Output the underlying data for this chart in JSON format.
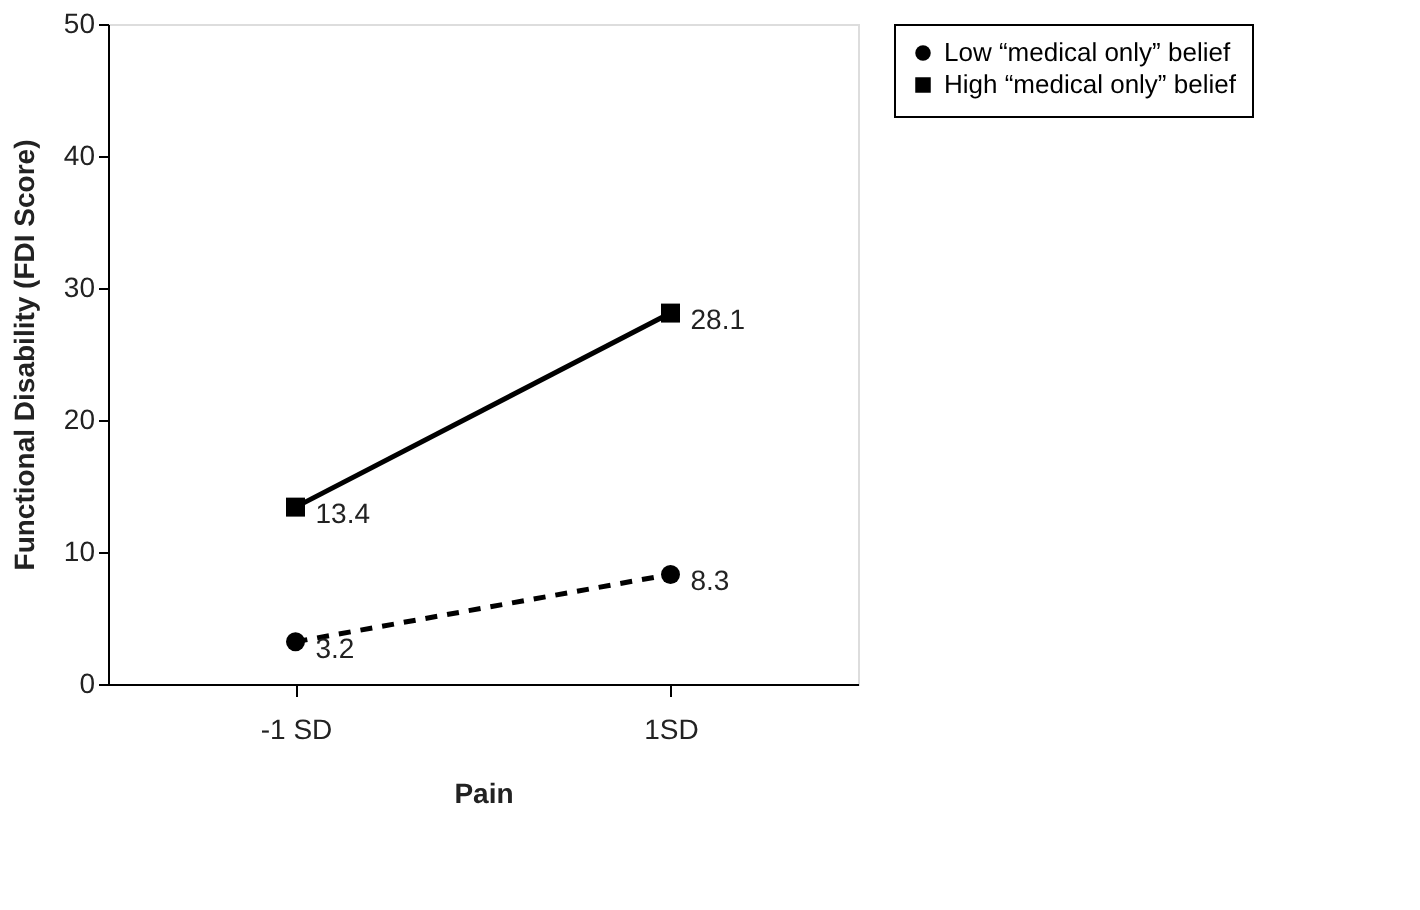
{
  "chart_data": {
    "type": "line",
    "xlabel": "Pain",
    "ylabel": "Functional Disability (FDI Score)",
    "categories": [
      "-1 SD",
      "1SD"
    ],
    "series": [
      {
        "name": "Low “medical only” belief",
        "color": "#000000",
        "values": [
          3.2,
          8.3
        ],
        "marker": "circle",
        "line_style": "dashed"
      },
      {
        "name": "High “medical only” belief",
        "color": "#000000",
        "values": [
          13.4,
          28.1
        ],
        "marker": "square",
        "line_style": "solid"
      }
    ],
    "ylim": [
      0,
      50
    ],
    "yticks": [
      0,
      10,
      20,
      30,
      40,
      50
    ],
    "grid": false,
    "legend": "right",
    "data_labels": true
  }
}
